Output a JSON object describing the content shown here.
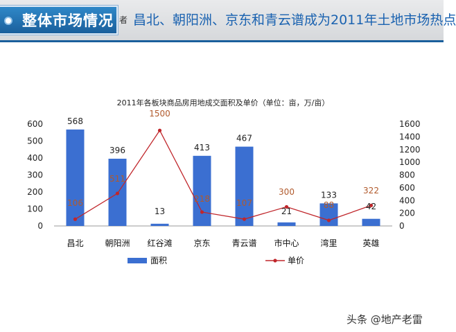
{
  "header": {
    "badge": "整体市场情况",
    "fragment": "者",
    "headline": "昌北、朝阳洲、京东和青云谱成为2011年土地市场热点"
  },
  "chart_data": {
    "type": "bar+line",
    "title": "2011年各板块商品房用地成交面积及单价（单位：亩，万/亩）",
    "categories": [
      "昌北",
      "朝阳洲",
      "红谷滩",
      "京东",
      "青云谱",
      "市中心",
      "湾里",
      "英雄"
    ],
    "series": [
      {
        "name": "面积",
        "type": "bar",
        "axis": "left",
        "color": "#3b6fd1",
        "values": [
          568,
          396,
          13,
          413,
          467,
          21,
          133,
          42
        ]
      },
      {
        "name": "单价",
        "type": "line",
        "axis": "right",
        "color": "#c0262b",
        "values": [
          106,
          511,
          1500,
          218,
          107,
          300,
          88,
          322
        ]
      }
    ],
    "left_axis": {
      "min": 0,
      "max": 600,
      "ticks": [
        0,
        100,
        200,
        300,
        400,
        500,
        600
      ]
    },
    "right_axis": {
      "min": 0,
      "max": 1600,
      "ticks": [
        0,
        200,
        400,
        600,
        800,
        1000,
        1200,
        1400,
        1600
      ]
    },
    "legend": {
      "position": "bottom"
    }
  },
  "watermark": "头条 @地产老雷"
}
